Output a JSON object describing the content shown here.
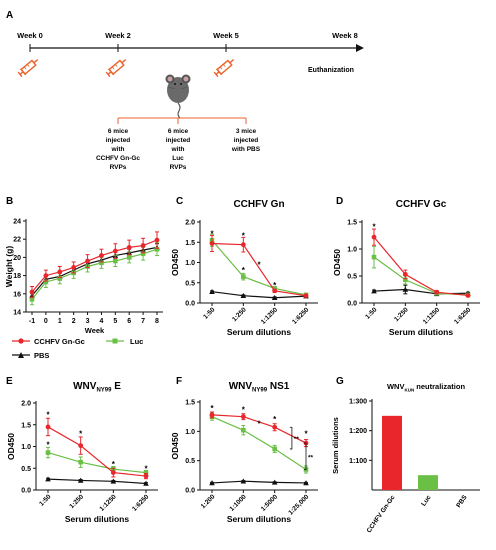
{
  "panel_letters": [
    "A",
    "B",
    "C",
    "D",
    "E",
    "F",
    "G"
  ],
  "timeline": {
    "weeks": [
      "Week 0",
      "Week 2",
      "Week 5",
      "Week 8"
    ],
    "end_label": "Euthanization",
    "groups": [
      [
        "6 mice",
        "injected",
        "with",
        "CCHFV Gn-Gc",
        "RVPs"
      ],
      [
        "6 mice",
        "injected",
        "with",
        "Luc",
        "RVPs"
      ],
      [
        "3 mice",
        "injected",
        "with PBS"
      ]
    ]
  },
  "legend": {
    "cchfv": "CCHFV Gn-Gc",
    "luc": "Luc",
    "pbs": "PBS"
  },
  "colors": {
    "cchfv": "#e8262b",
    "luc": "#6abf45",
    "pbs": "#111111",
    "syringe": "#e8632b"
  },
  "chart_data": [
    {
      "id": "B",
      "type": "line",
      "title": "",
      "xlabel": "Week",
      "ylabel": "Weight (g)",
      "x": [
        -1,
        0,
        1,
        2,
        3,
        4,
        5,
        6,
        7,
        8
      ],
      "x_ticks": [
        "-1",
        "0",
        "1",
        "2",
        "3",
        "4",
        "5",
        "6",
        "7",
        "8"
      ],
      "ylim": [
        14,
        24
      ],
      "y_ticks": [
        "14",
        "16",
        "18",
        "20",
        "22",
        "24"
      ],
      "series": [
        {
          "name": "CCHFV Gn-Gc",
          "values": [
            16.2,
            18.0,
            18.4,
            18.9,
            19.6,
            20.2,
            20.7,
            21.1,
            21.3,
            21.9
          ]
        },
        {
          "name": "Luc",
          "values": [
            15.4,
            17.3,
            17.7,
            18.3,
            19.0,
            19.4,
            19.6,
            20.0,
            20.4,
            20.9
          ]
        },
        {
          "name": "PBS",
          "values": [
            15.8,
            17.6,
            17.9,
            18.6,
            19.3,
            19.7,
            20.2,
            20.5,
            20.8,
            21.1
          ]
        }
      ],
      "errors": [
        [
          0.6,
          0.6,
          0.6,
          0.6,
          0.7,
          0.7,
          0.8,
          0.8,
          0.8,
          0.9
        ],
        [
          0.6,
          0.6,
          0.6,
          0.6,
          0.6,
          0.6,
          0.6,
          0.6,
          0.7,
          0.7
        ],
        [
          0.4,
          0.4,
          0.4,
          0.4,
          0.4,
          0.4,
          0.4,
          0.4,
          0.4,
          0.4
        ]
      ]
    },
    {
      "id": "C",
      "type": "line",
      "title": "CCHFV  Gn",
      "xlabel": "Serum dilutions",
      "ylabel": "OD450",
      "categories": [
        "1:50",
        "1:250",
        "1:1250",
        "1:6250"
      ],
      "ylim": [
        0,
        2.0
      ],
      "y_ticks": [
        "0.0",
        "0.5",
        "1.0",
        "1.5",
        "2.0"
      ],
      "series": [
        {
          "name": "CCHFV Gn-Gc",
          "values": [
            1.47,
            1.44,
            0.3,
            0.18
          ]
        },
        {
          "name": "Luc",
          "values": [
            1.55,
            0.65,
            0.36,
            0.2
          ]
        },
        {
          "name": "PBS",
          "values": [
            0.28,
            0.18,
            0.13,
            0.17
          ]
        }
      ],
      "errors": [
        [
          0.2,
          0.18,
          0.04,
          0.03
        ],
        [
          0.15,
          0.08,
          0.05,
          0.03
        ],
        [
          0.02,
          0.02,
          0.02,
          0.02
        ]
      ],
      "stars": [
        [
          0,
          1.72
        ],
        [
          1,
          1.67
        ],
        [
          1,
          0.82
        ],
        [
          2,
          0.45
        ]
      ],
      "inline_stars": [
        [
          1.5,
          0.95
        ]
      ]
    },
    {
      "id": "D",
      "type": "line",
      "title": "CCHFV  Gc",
      "xlabel": "Serum dilutions",
      "ylabel": "OD450",
      "categories": [
        "1:50",
        "1:250",
        "1:1250",
        "1:6250"
      ],
      "ylim": [
        0,
        1.5
      ],
      "y_ticks": [
        "0.0",
        "0.5",
        "1.0",
        "1.5"
      ],
      "series": [
        {
          "name": "CCHFV Gn-Gc",
          "values": [
            1.22,
            0.53,
            0.2,
            0.14
          ]
        },
        {
          "name": "Luc",
          "values": [
            0.85,
            0.43,
            0.18,
            0.15
          ]
        },
        {
          "name": "PBS",
          "values": [
            0.22,
            0.25,
            0.17,
            0.18
          ]
        }
      ],
      "errors": [
        [
          0.15,
          0.08,
          0.03,
          0.02
        ],
        [
          0.2,
          0.08,
          0.03,
          0.02
        ],
        [
          0.02,
          0.08,
          0.02,
          0.02
        ]
      ],
      "stars": [
        [
          0,
          1.42
        ]
      ],
      "inline_stars": []
    },
    {
      "id": "E",
      "type": "line",
      "title_main": "WNV",
      "title_sub": "NY99",
      "title_tail": " E",
      "xlabel": "Serum dilutions",
      "ylabel": "OD450",
      "categories": [
        "1:50",
        "1:250",
        "1:1250",
        "1:6250"
      ],
      "ylim": [
        0,
        2.0
      ],
      "y_ticks": [
        "0.0",
        "0.5",
        "1.0",
        "1.5",
        "2.0"
      ],
      "series": [
        {
          "name": "CCHFV Gn-Gc",
          "values": [
            1.45,
            1.02,
            0.4,
            0.32
          ]
        },
        {
          "name": "Luc",
          "values": [
            0.86,
            0.64,
            0.48,
            0.4
          ]
        },
        {
          "name": "PBS",
          "values": [
            0.25,
            0.22,
            0.2,
            0.15
          ]
        }
      ],
      "errors": [
        [
          0.2,
          0.2,
          0.1,
          0.06
        ],
        [
          0.12,
          0.12,
          0.06,
          0.05
        ],
        [
          0.02,
          0.02,
          0.02,
          0.02
        ]
      ],
      "stars": [
        [
          0,
          1.73
        ],
        [
          0,
          1.05
        ],
        [
          1,
          1.3
        ],
        [
          2,
          0.6
        ],
        [
          3,
          0.5
        ]
      ],
      "inline_stars": []
    },
    {
      "id": "F",
      "type": "line",
      "title_main": "WNV",
      "title_sub": "NY99",
      "title_tail": " NS1",
      "xlabel": "Serum dilutions",
      "ylabel": "OD450",
      "categories": [
        "1:200",
        "1:1000",
        "1:5000",
        "1:25,000"
      ],
      "ylim": [
        0,
        1.5
      ],
      "y_ticks": [
        "0.0",
        "0.5",
        "1.0",
        "1.5"
      ],
      "series": [
        {
          "name": "CCHFV Gn-Gc",
          "values": [
            1.28,
            1.25,
            1.07,
            0.8
          ]
        },
        {
          "name": "Luc",
          "values": [
            1.25,
            1.02,
            0.7,
            0.35
          ]
        },
        {
          "name": "PBS",
          "values": [
            0.12,
            0.15,
            0.13,
            0.12
          ]
        }
      ],
      "errors": [
        [
          0.05,
          0.05,
          0.06,
          0.06
        ],
        [
          0.06,
          0.08,
          0.06,
          0.06
        ],
        [
          0.01,
          0.01,
          0.01,
          0.01
        ]
      ],
      "stars": [
        [
          0,
          1.4
        ],
        [
          1,
          1.37
        ],
        [
          2,
          1.21
        ],
        [
          3,
          0.96
        ]
      ],
      "inline_stars": [
        [
          1.5,
          1.13
        ]
      ],
      "brackets": [
        {
          "x": 2.55,
          "y1": 1.07,
          "y2": 0.7,
          "label": "**"
        },
        {
          "x": 3.25,
          "y1": 0.8,
          "y2": 0.35,
          "label": "**"
        }
      ]
    },
    {
      "id": "G",
      "type": "bar",
      "title_main": "WNV",
      "title_sub": "KUN",
      "title_tail": " neutralization",
      "ylabel": "Serum  dilutions",
      "categories": [
        "CCHFV Gn-Gc",
        "Luc",
        "PBS"
      ],
      "values": [
        250,
        50,
        0
      ],
      "ylim": [
        0,
        300
      ],
      "y_ticks": [
        "1:300",
        "1:200",
        "1:100"
      ]
    }
  ]
}
